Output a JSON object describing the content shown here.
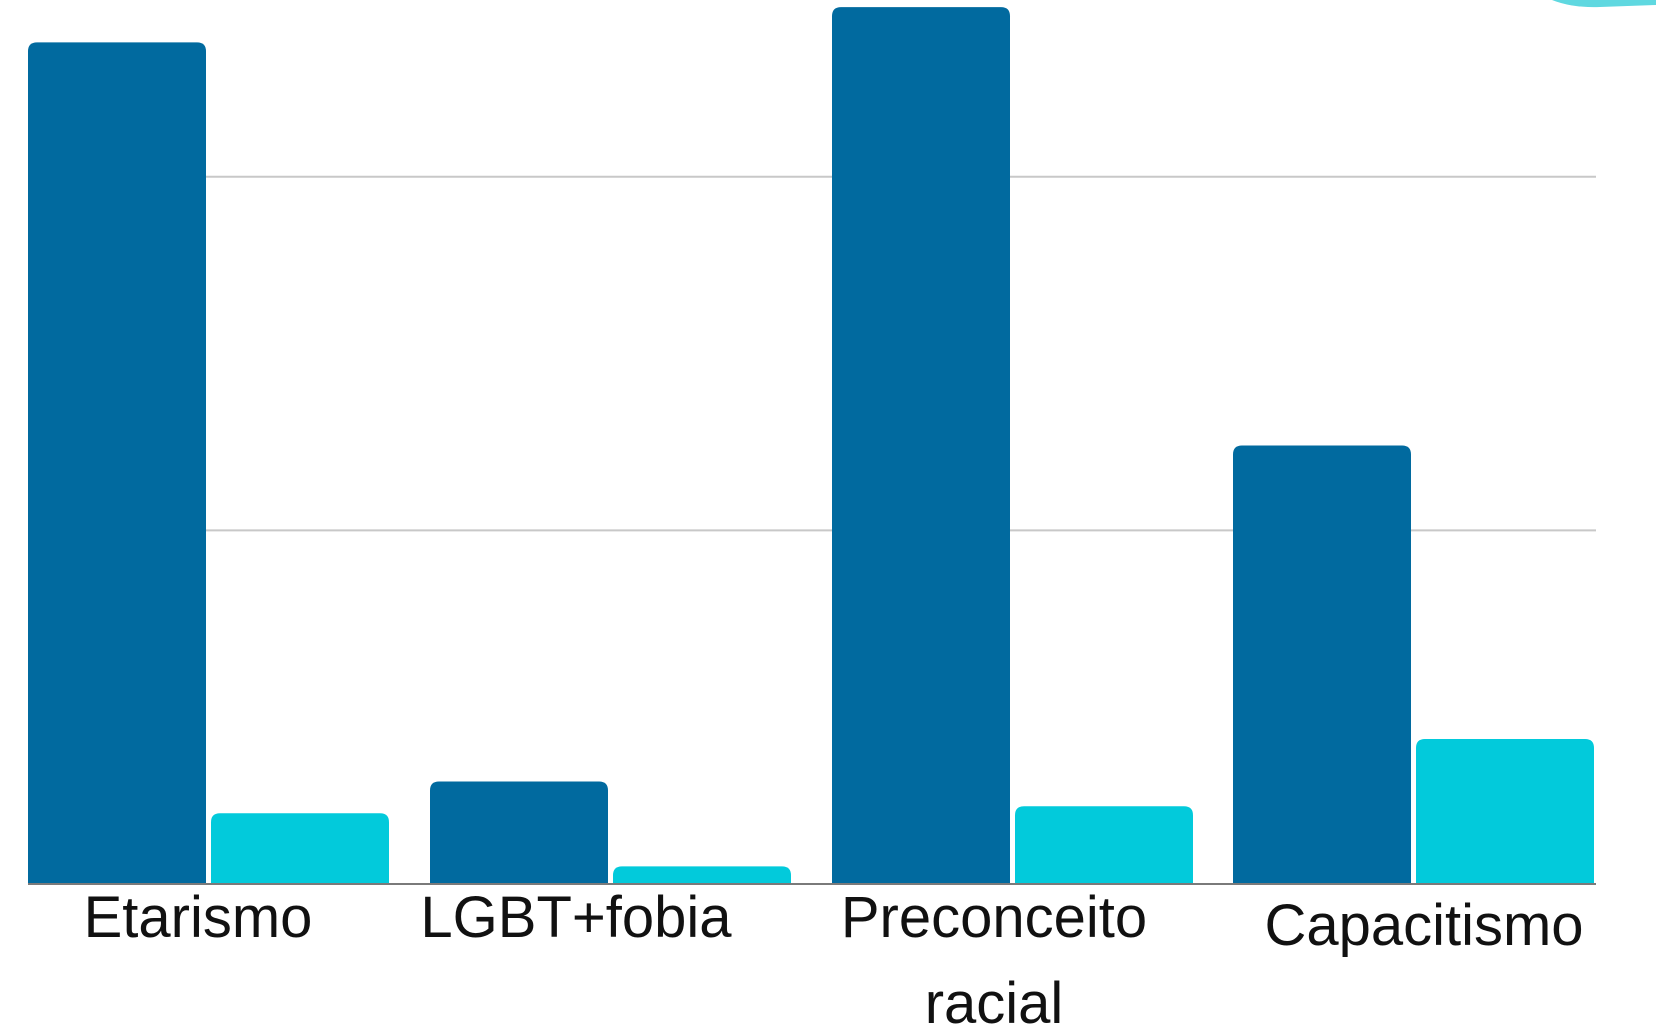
{
  "chart_data": {
    "type": "bar",
    "categories": [
      "Etarismo",
      "LGBT+fobia",
      "Preconceito racial",
      "Capacitismo"
    ],
    "category_label_lines": [
      [
        "Etarismo"
      ],
      [
        "LGBT+fobia"
      ],
      [
        "Preconceito",
        "racial"
      ],
      [
        "Capacitismo"
      ]
    ],
    "series": [
      {
        "values": [
          2.38,
          0.29,
          2.48,
          1.24
        ],
        "color": "#016a9f"
      },
      {
        "values": [
          0.2,
          0.05,
          0.22,
          0.41
        ],
        "color": "#02cadb"
      }
    ],
    "ylim": [
      0,
      2.5
    ],
    "gridlines": [
      1,
      2
    ],
    "grid": true,
    "title": "",
    "xlabel": "",
    "ylabel": ""
  }
}
